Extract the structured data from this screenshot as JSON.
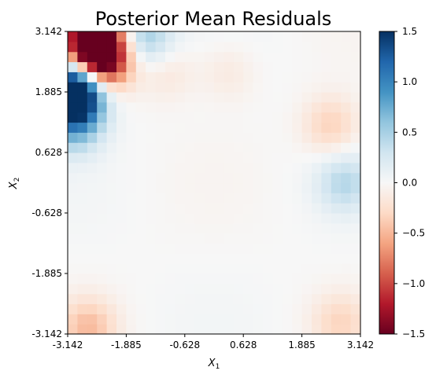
{
  "chart_data": {
    "type": "heatmap",
    "title": "Posterior Mean Residuals",
    "xlabel": "X",
    "xlabel_sub": "1",
    "ylabel": "X",
    "ylabel_sub": "2",
    "x_ticks": [
      "-3.142",
      "-1.885",
      "-0.628",
      "0.628",
      "1.885",
      "3.142"
    ],
    "y_ticks": [
      "-3.142",
      "-1.885",
      "-0.628",
      "0.628",
      "1.885",
      "3.142"
    ],
    "xlim": [
      -3.142,
      3.142
    ],
    "ylim": [
      -3.142,
      3.142
    ],
    "grid_size": 30,
    "colormap": "RdBu",
    "vmin": -1.5,
    "vmax": 1.5,
    "colorbar_ticks": [
      "1.5",
      "1.0",
      "0.5",
      "0.0",
      "−0.5",
      "−1.0",
      "−1.5"
    ],
    "colorbar_values": [
      1.5,
      1.0,
      0.5,
      0.0,
      -0.5,
      -1.0,
      -1.5
    ],
    "residual_features": [
      {
        "x": -2.6,
        "y": 3.0,
        "value": -1.45
      },
      {
        "x": -2.5,
        "y": 2.7,
        "value": -1.1
      },
      {
        "x": -2.4,
        "y": 2.4,
        "value": -0.8
      },
      {
        "x": -3.0,
        "y": 1.8,
        "value": 1.45
      },
      {
        "x": -2.9,
        "y": 2.1,
        "value": 1.0
      },
      {
        "x": -3.0,
        "y": 1.2,
        "value": 0.6
      },
      {
        "x": -1.0,
        "y": 2.3,
        "value": -0.18
      },
      {
        "x": 0.3,
        "y": 2.3,
        "value": -0.15
      },
      {
        "x": 2.5,
        "y": 1.2,
        "value": -0.35
      },
      {
        "x": 2.8,
        "y": 0.0,
        "value": 0.4
      },
      {
        "x": -2.7,
        "y": -3.0,
        "value": -0.45
      },
      {
        "x": 2.7,
        "y": -2.9,
        "value": -0.3
      },
      {
        "x": -1.5,
        "y": 3.05,
        "value": 0.55
      }
    ]
  }
}
